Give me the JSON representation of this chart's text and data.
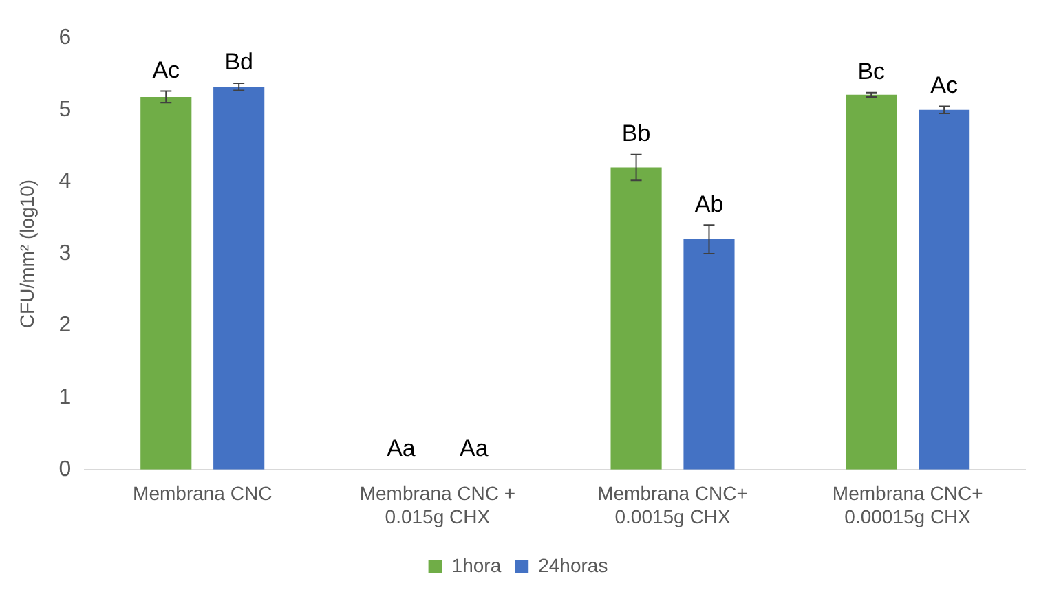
{
  "chart_data": {
    "type": "bar",
    "ylabel": "CFU/mm² (log10)",
    "categories": [
      "Membrana CNC",
      "Membrana CNC +\n0.015g CHX",
      "Membrana CNC+\n0.0015g CHX",
      "Membrana CNC+\n0.00015g CHX"
    ],
    "series": [
      {
        "name": "1hora",
        "color": "#70ad47",
        "values": [
          5.18,
          0,
          4.2,
          5.21
        ],
        "errors": [
          0.08,
          null,
          0.18,
          0.03
        ]
      },
      {
        "name": "24horas",
        "color": "#4472c4",
        "values": [
          5.32,
          0,
          3.2,
          5.0
        ],
        "errors": [
          0.05,
          null,
          0.2,
          0.05
        ]
      }
    ],
    "annotations": [
      "Ac",
      "Bd",
      "Aa",
      "Aa",
      "Bb",
      "Ab",
      "Bc",
      "Ac"
    ],
    "ylim": [
      0,
      6
    ],
    "yticks": [
      0,
      1,
      2,
      3,
      4,
      5,
      6
    ],
    "grid": false,
    "legend": "bottom"
  }
}
